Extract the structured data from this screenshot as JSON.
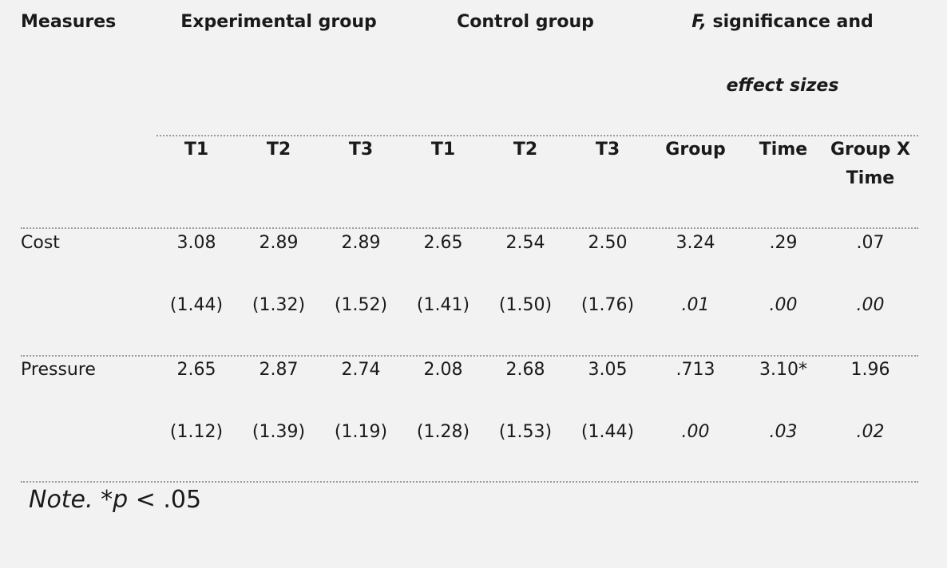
{
  "header": {
    "measures": "Measures",
    "experimental": "Experimental group",
    "control": "Control group",
    "stats_f": "F,",
    "stats_rest": " significance and",
    "stats_line2": "effect sizes"
  },
  "subheader": {
    "exp_t1": "T1",
    "exp_t2": "T2",
    "exp_t3": "T3",
    "ctl_t1": "T1",
    "ctl_t2": "T2",
    "ctl_t3": "T3",
    "group": "Group",
    "time": "Time",
    "gxt_line1": "Group X",
    "gxt_line2": "Time"
  },
  "rows": [
    {
      "label": "Cost",
      "means": [
        "3.08",
        "2.89",
        "2.89",
        "2.65",
        "2.54",
        "2.50",
        "3.24",
        ".29",
        ".07"
      ],
      "sds": [
        "(1.44)",
        "(1.32)",
        "(1.52)",
        "(1.41)",
        "(1.50)",
        "(1.76)",
        ".01",
        ".00",
        ".00"
      ]
    },
    {
      "label": "Pressure",
      "means": [
        "2.65",
        "2.87",
        "2.74",
        "2.08",
        "2.68",
        "3.05",
        ".713",
        "3.10*",
        "1.96"
      ],
      "sds": [
        "(1.12)",
        "(1.39)",
        "(1.19)",
        "(1.28)",
        "(1.53)",
        "(1.44)",
        ".00",
        ".03",
        ".02"
      ]
    }
  ],
  "note": {
    "label": "Note.",
    "text_a": " *",
    "p": "p",
    "text_b": " < .05"
  }
}
